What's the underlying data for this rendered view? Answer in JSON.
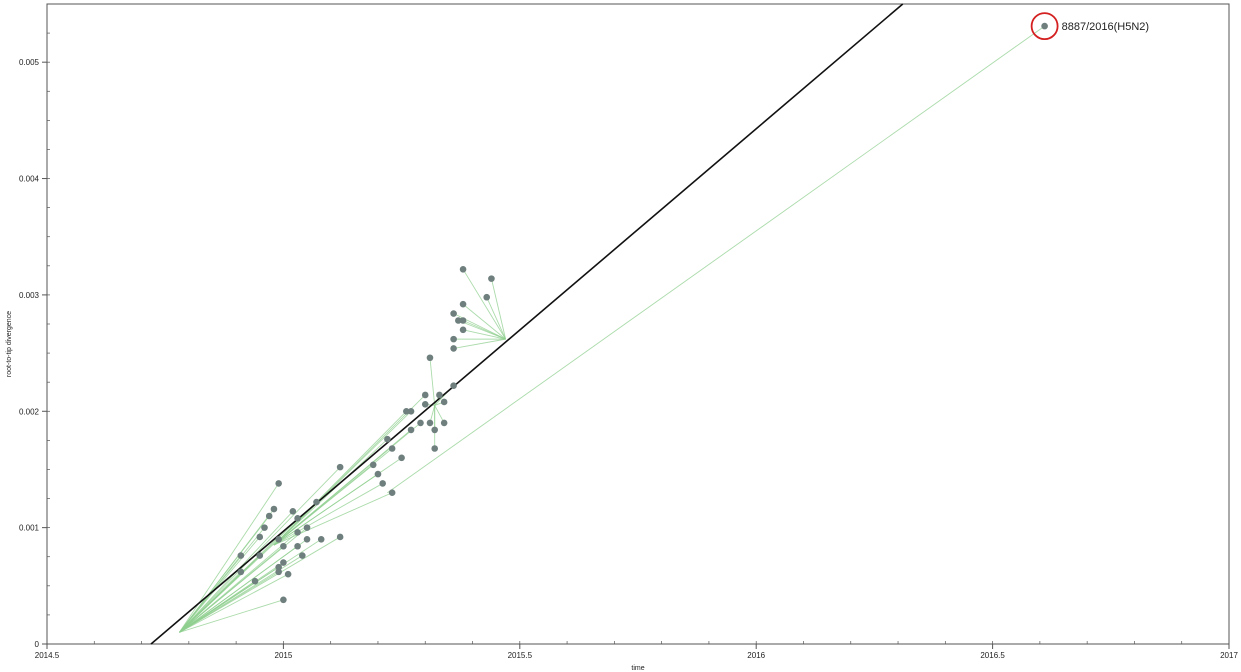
{
  "chart_data": {
    "type": "scatter",
    "xlabel": "time",
    "ylabel": "root-to-tip divergence",
    "xlim": [
      2014.5,
      2017
    ],
    "ylim": [
      0,
      0.0055
    ],
    "x_ticks": [
      "2014.5",
      "2015",
      "2015.5",
      "2016",
      "2016.5",
      "2017"
    ],
    "y_ticks": [
      "0",
      "0.001",
      "0.002",
      "0.003",
      "0.004",
      "0.005"
    ],
    "grid": false,
    "regression_line": {
      "x": [
        2014.72,
        2016.31
      ],
      "y": [
        0.0,
        0.0055
      ]
    },
    "points": [
      {
        "x": 2014.99,
        "y": 0.00138
      },
      {
        "x": 2014.98,
        "y": 0.00116
      },
      {
        "x": 2014.97,
        "y": 0.0011
      },
      {
        "x": 2014.96,
        "y": 0.001
      },
      {
        "x": 2014.95,
        "y": 0.00092
      },
      {
        "x": 2014.99,
        "y": 0.0009
      },
      {
        "x": 2015.0,
        "y": 0.00084
      },
      {
        "x": 2014.95,
        "y": 0.00076
      },
      {
        "x": 2014.91,
        "y": 0.00076
      },
      {
        "x": 2014.91,
        "y": 0.00062
      },
      {
        "x": 2014.99,
        "y": 0.00066
      },
      {
        "x": 2015.0,
        "y": 0.0007
      },
      {
        "x": 2014.94,
        "y": 0.00054
      },
      {
        "x": 2014.99,
        "y": 0.00062
      },
      {
        "x": 2015.01,
        "y": 0.0006
      },
      {
        "x": 2015.0,
        "y": 0.00038
      },
      {
        "x": 2015.02,
        "y": 0.00114
      },
      {
        "x": 2015.03,
        "y": 0.00108
      },
      {
        "x": 2015.03,
        "y": 0.00096
      },
      {
        "x": 2015.05,
        "y": 0.001
      },
      {
        "x": 2015.05,
        "y": 0.0009
      },
      {
        "x": 2015.08,
        "y": 0.0009
      },
      {
        "x": 2015.03,
        "y": 0.00084
      },
      {
        "x": 2015.04,
        "y": 0.00076
      },
      {
        "x": 2015.12,
        "y": 0.00092
      },
      {
        "x": 2015.07,
        "y": 0.00122
      },
      {
        "x": 2015.12,
        "y": 0.00152
      },
      {
        "x": 2015.19,
        "y": 0.00154
      },
      {
        "x": 2015.2,
        "y": 0.00146
      },
      {
        "x": 2015.21,
        "y": 0.00138
      },
      {
        "x": 2015.23,
        "y": 0.0013
      },
      {
        "x": 2015.22,
        "y": 0.00176
      },
      {
        "x": 2015.23,
        "y": 0.00168
      },
      {
        "x": 2015.25,
        "y": 0.0016
      },
      {
        "x": 2015.26,
        "y": 0.002
      },
      {
        "x": 2015.27,
        "y": 0.00184
      },
      {
        "x": 2015.27,
        "y": 0.002
      },
      {
        "x": 2015.29,
        "y": 0.0019
      },
      {
        "x": 2015.3,
        "y": 0.00214
      },
      {
        "x": 2015.3,
        "y": 0.00206
      },
      {
        "x": 2015.31,
        "y": 0.0019
      },
      {
        "x": 2015.32,
        "y": 0.00184
      },
      {
        "x": 2015.32,
        "y": 0.00168
      },
      {
        "x": 2015.33,
        "y": 0.00214
      },
      {
        "x": 2015.34,
        "y": 0.00208
      },
      {
        "x": 2015.34,
        "y": 0.0019
      },
      {
        "x": 2015.36,
        "y": 0.00222
      },
      {
        "x": 2015.31,
        "y": 0.00246
      },
      {
        "x": 2015.36,
        "y": 0.00254
      },
      {
        "x": 2015.36,
        "y": 0.00262
      },
      {
        "x": 2015.38,
        "y": 0.0027
      },
      {
        "x": 2015.38,
        "y": 0.00278
      },
      {
        "x": 2015.36,
        "y": 0.00284
      },
      {
        "x": 2015.37,
        "y": 0.00278
      },
      {
        "x": 2015.38,
        "y": 0.00292
      },
      {
        "x": 2015.38,
        "y": 0.00322
      },
      {
        "x": 2015.43,
        "y": 0.00298
      },
      {
        "x": 2015.44,
        "y": 0.00314
      },
      {
        "x": 2016.61,
        "y": 0.00531,
        "label": "8887/2016(H5N2)",
        "highlight": true
      }
    ],
    "connectors": [
      {
        "from": [
          2014.78,
          0.0001
        ],
        "to": [
          [
            2014.99,
            0.00138
          ],
          [
            2014.98,
            0.00116
          ],
          [
            2014.97,
            0.0011
          ],
          [
            2014.96,
            0.001
          ],
          [
            2014.95,
            0.00092
          ],
          [
            2014.99,
            0.0009
          ],
          [
            2015.0,
            0.00084
          ],
          [
            2014.95,
            0.00076
          ],
          [
            2014.91,
            0.00076
          ],
          [
            2014.91,
            0.00062
          ],
          [
            2014.99,
            0.00066
          ],
          [
            2015.0,
            0.0007
          ],
          [
            2014.94,
            0.00054
          ],
          [
            2014.99,
            0.00062
          ],
          [
            2015.01,
            0.0006
          ],
          [
            2015.0,
            0.00038
          ],
          [
            2015.02,
            0.00114
          ],
          [
            2015.03,
            0.00108
          ],
          [
            2015.03,
            0.00096
          ],
          [
            2015.05,
            0.001
          ],
          [
            2015.05,
            0.0009
          ],
          [
            2015.08,
            0.0009
          ],
          [
            2015.03,
            0.00084
          ],
          [
            2015.04,
            0.00076
          ],
          [
            2015.12,
            0.00092
          ],
          [
            2015.07,
            0.00122
          ],
          [
            2015.12,
            0.00152
          ]
        ]
      },
      {
        "from": [
          2014.98,
          0.00085
        ],
        "to": [
          [
            2015.19,
            0.00154
          ],
          [
            2015.2,
            0.00146
          ],
          [
            2015.21,
            0.00138
          ],
          [
            2015.23,
            0.0013
          ],
          [
            2015.22,
            0.00176
          ],
          [
            2015.23,
            0.00168
          ],
          [
            2015.25,
            0.0016
          ],
          [
            2015.26,
            0.002
          ],
          [
            2015.27,
            0.00184
          ],
          [
            2015.27,
            0.002
          ],
          [
            2015.29,
            0.0019
          ],
          [
            2015.3,
            0.00214
          ]
        ]
      },
      {
        "from": [
          2015.32,
          0.00205
        ],
        "to": [
          [
            2015.3,
            0.00206
          ],
          [
            2015.31,
            0.0019
          ],
          [
            2015.32,
            0.00184
          ],
          [
            2015.32,
            0.00168
          ],
          [
            2015.33,
            0.00214
          ],
          [
            2015.34,
            0.00208
          ],
          [
            2015.34,
            0.0019
          ],
          [
            2015.36,
            0.00222
          ],
          [
            2015.31,
            0.00246
          ]
        ]
      },
      {
        "from": [
          2015.47,
          0.00262
        ],
        "to": [
          [
            2015.36,
            0.00254
          ],
          [
            2015.36,
            0.00262
          ],
          [
            2015.38,
            0.0027
          ],
          [
            2015.38,
            0.00278
          ],
          [
            2015.36,
            0.00284
          ],
          [
            2015.37,
            0.00278
          ],
          [
            2015.38,
            0.00292
          ],
          [
            2015.38,
            0.00322
          ],
          [
            2015.43,
            0.00298
          ],
          [
            2015.44,
            0.00314
          ]
        ]
      },
      {
        "from": [
          2015.22,
          0.0013
        ],
        "to": [
          [
            2016.61,
            0.00531
          ]
        ]
      }
    ]
  },
  "colors": {
    "point": "#6e7f7d",
    "connector": "#8fcf8f",
    "regression": "#111111",
    "highlight_ring": "#d42020",
    "frame": "#555555"
  }
}
